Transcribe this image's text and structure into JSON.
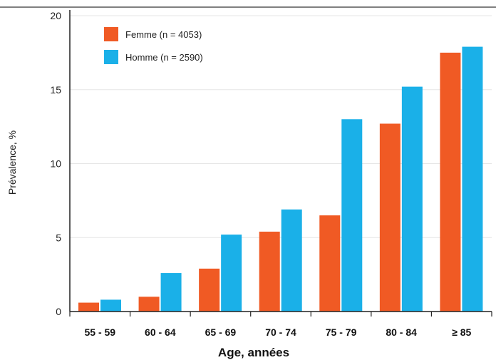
{
  "chart_data": {
    "type": "bar",
    "categories": [
      "55 - 59",
      "60 - 64",
      "65 - 69",
      "70 - 74",
      "75 - 79",
      "80 - 84",
      "≥ 85"
    ],
    "series": [
      {
        "name": "Femme (n = 4053)",
        "color": "#f05a24",
        "values": [
          0.6,
          1.0,
          2.9,
          5.4,
          6.5,
          12.7,
          17.5
        ]
      },
      {
        "name": "Homme (n = 2590)",
        "color": "#1ab0e8",
        "values": [
          0.8,
          2.6,
          5.2,
          6.9,
          13.0,
          15.2,
          17.9
        ]
      }
    ],
    "xlabel": "Age, années",
    "ylabel": "Prévalence, %",
    "ylim": [
      0,
      20
    ],
    "yticks": [
      0,
      5,
      10,
      15,
      20
    ],
    "grid": true,
    "legend_position": "top-left"
  }
}
